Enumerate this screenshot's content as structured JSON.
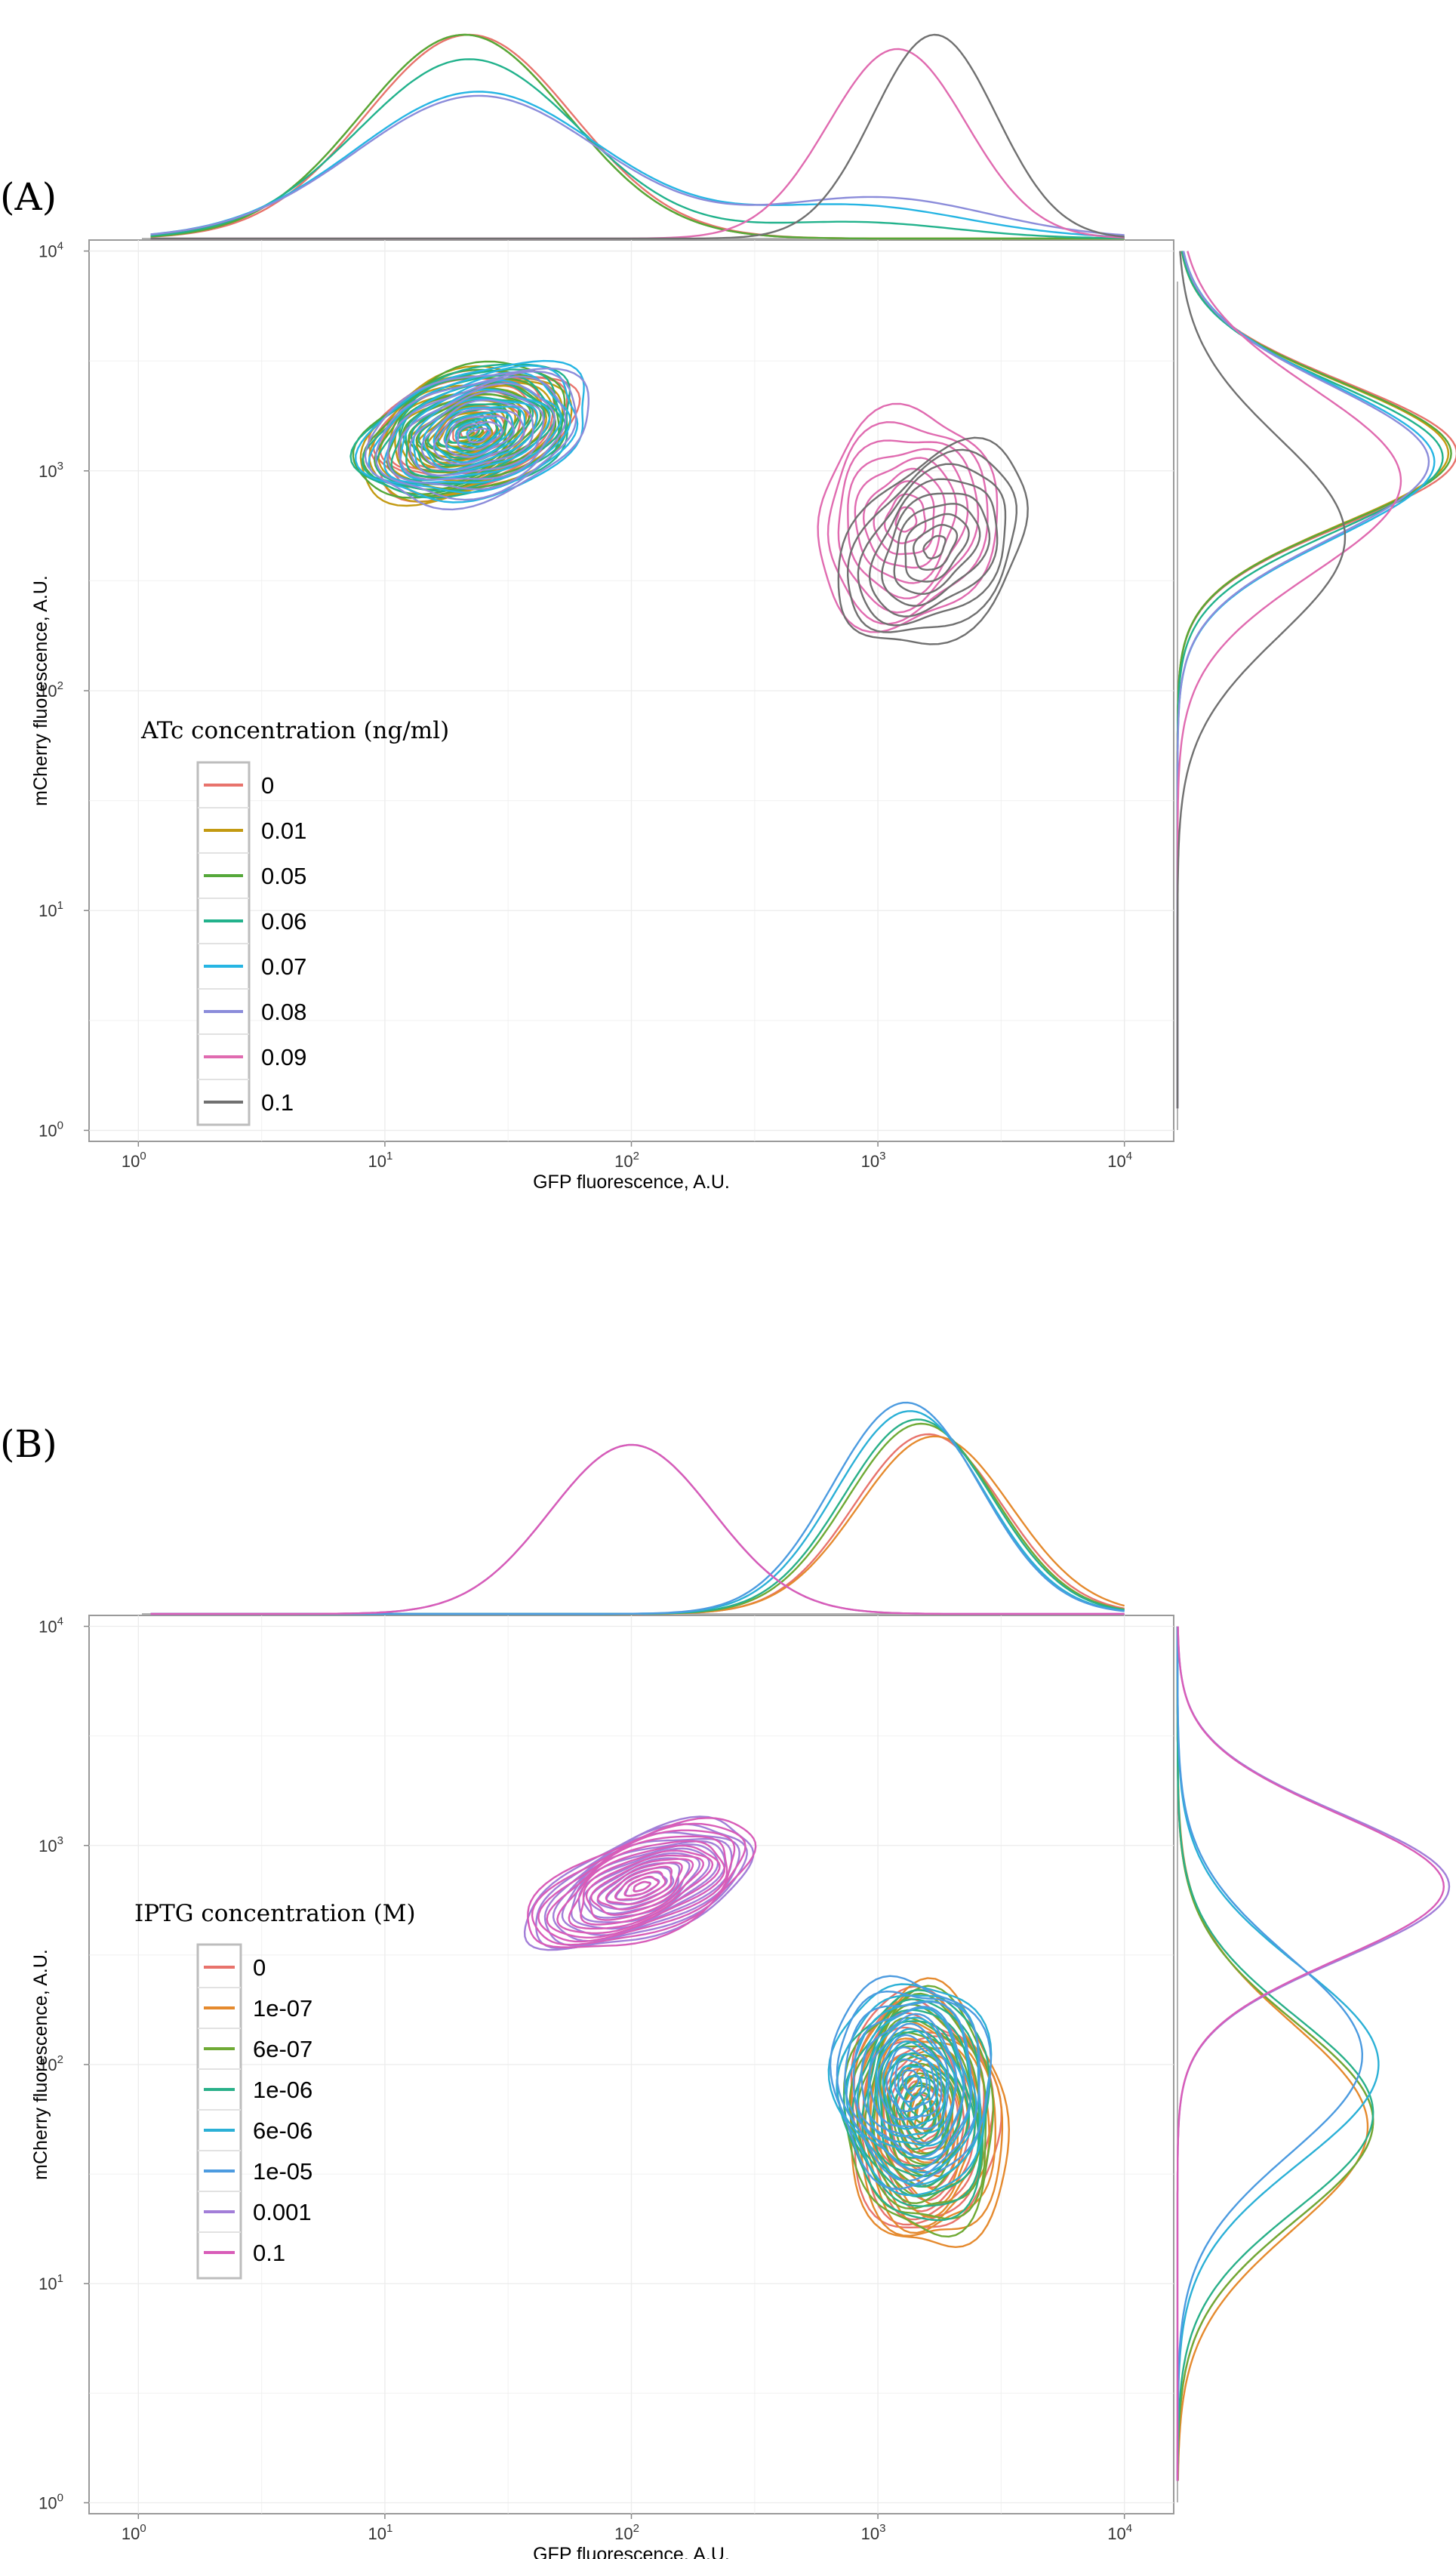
{
  "colors": {
    "atc": [
      "#E8736C",
      "#C39A12",
      "#55A83A",
      "#22B28C",
      "#26B5E3",
      "#8B8CDA",
      "#E06BB0",
      "#707070"
    ],
    "iptg": [
      "#E8736C",
      "#E58A2E",
      "#6FAA35",
      "#29B089",
      "#2BB0D6",
      "#4C9BE0",
      "#A27ED8",
      "#D85CB8"
    ]
  },
  "chart_data": [
    {
      "type": "contour",
      "panel_label": "(A)",
      "xlabel": "GFP fluorescence, A.U.",
      "ylabel": "mCherry fluorescence, A.U.",
      "x_scale": "log10",
      "y_scale": "log10",
      "xlim": [
        1,
        10000
      ],
      "ylim": [
        1,
        10000
      ],
      "x_ticks": [
        {
          "base": "10",
          "exp": "0"
        },
        {
          "base": "10",
          "exp": "1"
        },
        {
          "base": "10",
          "exp": "2"
        },
        {
          "base": "10",
          "exp": "3"
        },
        {
          "base": "10",
          "exp": "4"
        }
      ],
      "y_ticks": [
        {
          "base": "10",
          "exp": "0"
        },
        {
          "base": "10",
          "exp": "1"
        },
        {
          "base": "10",
          "exp": "2"
        },
        {
          "base": "10",
          "exp": "3"
        },
        {
          "base": "10",
          "exp": "4"
        }
      ],
      "legend_title": "ATc concentration (ng/ml)",
      "legend_position": "bottom-left inside",
      "series": [
        {
          "name": "0",
          "cx": 22,
          "cy": 1500,
          "sx": 0.44,
          "sy": 0.26,
          "rot": 0.38,
          "nlevels": 12
        },
        {
          "name": "0.01",
          "cx": 21,
          "cy": 1450,
          "sx": 0.45,
          "sy": 0.27,
          "rot": 0.4,
          "nlevels": 12
        },
        {
          "name": "0.05",
          "cx": 21,
          "cy": 1500,
          "sx": 0.45,
          "sy": 0.27,
          "rot": 0.4,
          "nlevels": 12
        },
        {
          "name": "0.06",
          "cx": 22,
          "cy": 1500,
          "sx": 0.46,
          "sy": 0.27,
          "rot": 0.38,
          "nlevels": 11
        },
        {
          "name": "0.07",
          "cx": 24,
          "cy": 1500,
          "sx": 0.48,
          "sy": 0.28,
          "rot": 0.36,
          "nlevels": 10
        },
        {
          "name": "0.08",
          "cx": 24,
          "cy": 1450,
          "sx": 0.47,
          "sy": 0.28,
          "rot": 0.36,
          "nlevels": 10
        },
        {
          "name": "0.09",
          "cx": 1300,
          "cy": 600,
          "sx": 0.36,
          "sy": 0.5,
          "rot": -0.15,
          "nlevels": 9
        },
        {
          "name": "0.1",
          "cx": 1700,
          "cy": 450,
          "sx": 0.33,
          "sy": 0.5,
          "rot": -0.55,
          "nlevels": 9
        }
      ],
      "marginal_top": [
        {
          "name": "0",
          "peaks": [
            {
              "x": 22,
              "sd": 0.42,
              "h": 1.0
            }
          ]
        },
        {
          "name": "0.01",
          "peaks": [
            {
              "x": 21,
              "sd": 0.42,
              "h": 1.0
            }
          ]
        },
        {
          "name": "0.05",
          "peaks": [
            {
              "x": 21,
              "sd": 0.42,
              "h": 1.0
            }
          ]
        },
        {
          "name": "0.06",
          "peaks": [
            {
              "x": 22,
              "sd": 0.45,
              "h": 0.88
            },
            {
              "x": 800,
              "sd": 0.4,
              "h": 0.08
            }
          ]
        },
        {
          "name": "0.07",
          "peaks": [
            {
              "x": 24,
              "sd": 0.5,
              "h": 0.72
            },
            {
              "x": 800,
              "sd": 0.45,
              "h": 0.16
            }
          ]
        },
        {
          "name": "0.08",
          "peaks": [
            {
              "x": 24,
              "sd": 0.5,
              "h": 0.7
            },
            {
              "x": 1000,
              "sd": 0.45,
              "h": 0.2
            }
          ]
        },
        {
          "name": "0.09",
          "peaks": [
            {
              "x": 1200,
              "sd": 0.28,
              "h": 0.93
            }
          ]
        },
        {
          "name": "0.1",
          "peaks": [
            {
              "x": 1700,
              "sd": 0.25,
              "h": 1.0
            }
          ]
        }
      ],
      "marginal_right": [
        {
          "name": "0",
          "peaks": [
            {
              "y": 1200,
              "sd": 0.32,
              "h": 1.0
            }
          ]
        },
        {
          "name": "0.01",
          "peaks": [
            {
              "y": 1200,
              "sd": 0.32,
              "h": 0.97
            }
          ]
        },
        {
          "name": "0.05",
          "peaks": [
            {
              "y": 1200,
              "sd": 0.32,
              "h": 0.98
            }
          ]
        },
        {
          "name": "0.06",
          "peaks": [
            {
              "y": 1150,
              "sd": 0.33,
              "h": 0.95
            }
          ]
        },
        {
          "name": "0.07",
          "peaks": [
            {
              "y": 1100,
              "sd": 0.35,
              "h": 0.92
            }
          ]
        },
        {
          "name": "0.08",
          "peaks": [
            {
              "y": 1100,
              "sd": 0.35,
              "h": 0.9
            }
          ]
        },
        {
          "name": "0.09",
          "peaks": [
            {
              "y": 900,
              "sd": 0.42,
              "h": 0.8
            }
          ]
        },
        {
          "name": "0.1",
          "peaks": [
            {
              "y": 500,
              "sd": 0.45,
              "h": 0.6
            }
          ]
        }
      ]
    },
    {
      "type": "contour",
      "panel_label": "(B)",
      "xlabel": "GFP fluorescence, A.U.",
      "ylabel": "mCherry fluorescence, A.U.",
      "x_scale": "log10",
      "y_scale": "log10",
      "xlim": [
        1,
        10000
      ],
      "ylim": [
        1,
        10000
      ],
      "x_ticks": [
        {
          "base": "10",
          "exp": "0"
        },
        {
          "base": "10",
          "exp": "1"
        },
        {
          "base": "10",
          "exp": "2"
        },
        {
          "base": "10",
          "exp": "3"
        },
        {
          "base": "10",
          "exp": "4"
        }
      ],
      "y_ticks": [
        {
          "base": "10",
          "exp": "0"
        },
        {
          "base": "10",
          "exp": "1"
        },
        {
          "base": "10",
          "exp": "2"
        },
        {
          "base": "10",
          "exp": "3"
        },
        {
          "base": "10",
          "exp": "4"
        }
      ],
      "legend_title": "IPTG concentration (M)",
      "legend_position": "left inside",
      "series": [
        {
          "name": "0",
          "cx": 1500,
          "cy": 60,
          "sx": 0.3,
          "sy": 0.55,
          "rot": 0.05,
          "nlevels": 12
        },
        {
          "name": "1e-07",
          "cx": 1600,
          "cy": 55,
          "sx": 0.32,
          "sy": 0.6,
          "rot": 0.05,
          "nlevels": 12
        },
        {
          "name": "6e-07",
          "cx": 1500,
          "cy": 60,
          "sx": 0.3,
          "sy": 0.55,
          "rot": 0.05,
          "nlevels": 12
        },
        {
          "name": "1e-06",
          "cx": 1450,
          "cy": 65,
          "sx": 0.3,
          "sy": 0.52,
          "rot": 0.05,
          "nlevels": 11
        },
        {
          "name": "6e-06",
          "cx": 1400,
          "cy": 80,
          "sx": 0.32,
          "sy": 0.48,
          "rot": 0.05,
          "nlevels": 10
        },
        {
          "name": "1e-05",
          "cx": 1350,
          "cy": 85,
          "sx": 0.32,
          "sy": 0.47,
          "rot": 0.05,
          "nlevels": 10
        },
        {
          "name": "0.001",
          "cx": 110,
          "cy": 650,
          "sx": 0.5,
          "sy": 0.22,
          "rot": 0.45,
          "nlevels": 14
        },
        {
          "name": "0.1",
          "cx": 110,
          "cy": 650,
          "sx": 0.5,
          "sy": 0.22,
          "rot": 0.45,
          "nlevels": 14
        }
      ],
      "marginal_top": [
        {
          "name": "0",
          "peaks": [
            {
              "x": 1600,
              "sd": 0.3,
              "h": 0.85
            }
          ]
        },
        {
          "name": "1e-07",
          "peaks": [
            {
              "x": 1700,
              "sd": 0.31,
              "h": 0.84
            }
          ]
        },
        {
          "name": "6e-07",
          "peaks": [
            {
              "x": 1500,
              "sd": 0.3,
              "h": 0.9
            }
          ]
        },
        {
          "name": "1e-06",
          "peaks": [
            {
              "x": 1450,
              "sd": 0.3,
              "h": 0.92
            }
          ]
        },
        {
          "name": "6e-06",
          "peaks": [
            {
              "x": 1350,
              "sd": 0.3,
              "h": 0.96
            }
          ]
        },
        {
          "name": "1e-05",
          "peaks": [
            {
              "x": 1300,
              "sd": 0.3,
              "h": 1.0
            }
          ]
        },
        {
          "name": "0.001",
          "peaks": [
            {
              "x": 100,
              "sd": 0.33,
              "h": 0.8
            }
          ]
        },
        {
          "name": "0.1",
          "peaks": [
            {
              "x": 100,
              "sd": 0.33,
              "h": 0.8
            }
          ]
        }
      ],
      "marginal_right": [
        {
          "name": "0",
          "peaks": [
            {
              "y": 55,
              "sd": 0.45,
              "h": 0.72
            }
          ]
        },
        {
          "name": "1e-07",
          "peaks": [
            {
              "y": 52,
              "sd": 0.47,
              "h": 0.7
            }
          ]
        },
        {
          "name": "6e-07",
          "peaks": [
            {
              "y": 55,
              "sd": 0.45,
              "h": 0.72
            }
          ]
        },
        {
          "name": "1e-06",
          "peaks": [
            {
              "y": 60,
              "sd": 0.44,
              "h": 0.72
            }
          ]
        },
        {
          "name": "6e-06",
          "peaks": [
            {
              "y": 100,
              "sd": 0.45,
              "h": 0.74
            }
          ]
        },
        {
          "name": "1e-05",
          "peaks": [
            {
              "y": 110,
              "sd": 0.45,
              "h": 0.68
            }
          ]
        },
        {
          "name": "0.001",
          "peaks": [
            {
              "y": 650,
              "sd": 0.33,
              "h": 1.0
            }
          ]
        },
        {
          "name": "0.1",
          "peaks": [
            {
              "y": 650,
              "sd": 0.33,
              "h": 0.98
            }
          ]
        }
      ]
    }
  ]
}
